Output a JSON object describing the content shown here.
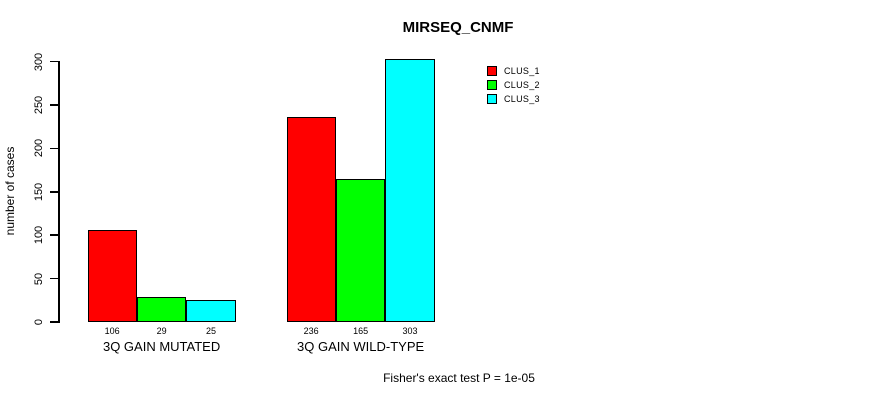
{
  "chart_data": {
    "type": "bar",
    "title": "MIRSEQ_CNMF",
    "ylabel": "number of cases",
    "xlabel": "",
    "categories": [
      "3Q GAIN MUTATED",
      "3Q GAIN WILD-TYPE"
    ],
    "series": [
      {
        "name": "CLUS_1",
        "color": "#ff0000",
        "values": [
          106,
          236
        ]
      },
      {
        "name": "CLUS_2",
        "color": "#00ff00",
        "values": [
          29,
          165
        ]
      },
      {
        "name": "CLUS_3",
        "color": "#00ffff",
        "values": [
          25,
          303
        ]
      }
    ],
    "ylim": [
      0,
      300
    ],
    "yticks": [
      0,
      50,
      100,
      150,
      200,
      250,
      300
    ],
    "bar_value_labels": [
      [
        "106",
        "29",
        "25"
      ],
      [
        "236",
        "165",
        "303"
      ]
    ],
    "grid": false,
    "legend_position": "top-right",
    "annotation": "Fisher's exact test P = 1e-05"
  }
}
